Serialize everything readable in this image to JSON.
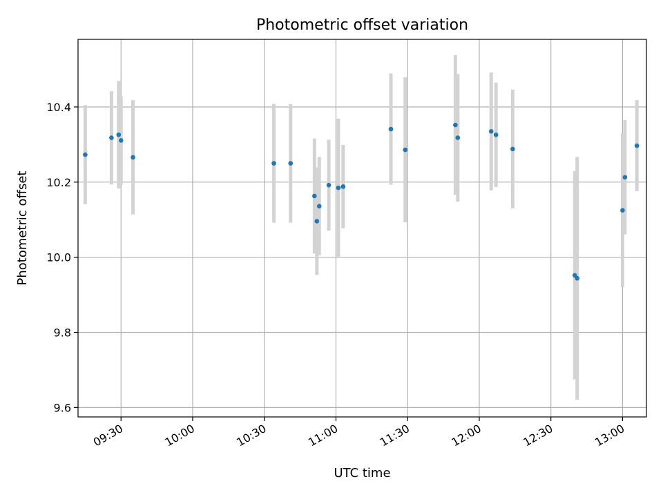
{
  "chart_data": {
    "type": "scatter",
    "title": "Photometric offset variation",
    "xlabel": "UTC time",
    "ylabel": "Photometric offset",
    "xlim": [
      "09:12",
      "13:10"
    ],
    "ylim": [
      9.575,
      10.58
    ],
    "grid": true,
    "x_ticks": [
      "09:30",
      "10:00",
      "10:30",
      "11:00",
      "11:30",
      "12:00",
      "12:30",
      "13:00"
    ],
    "y_ticks": [
      "9.6",
      "9.8",
      "10.0",
      "10.2",
      "10.4"
    ],
    "point_color": "#1f77b4",
    "errorbar_color": "#d3d3d3",
    "series": [
      {
        "points": [
          {
            "x": "09:15",
            "y": 10.273,
            "err": 0.132
          },
          {
            "x": "09:26",
            "y": 10.318,
            "err": 0.124
          },
          {
            "x": "09:29",
            "y": 10.326,
            "err": 0.143
          },
          {
            "x": "09:30",
            "y": 10.311,
            "err": 0.118
          },
          {
            "x": "09:35",
            "y": 10.266,
            "err": 0.152
          },
          {
            "x": "10:34",
            "y": 10.25,
            "err": 0.158
          },
          {
            "x": "10:41",
            "y": 10.25,
            "err": 0.158
          },
          {
            "x": "10:51",
            "y": 10.163,
            "err": 0.153
          },
          {
            "x": "10:52",
            "y": 10.096,
            "err": 0.143
          },
          {
            "x": "10:53",
            "y": 10.136,
            "err": 0.131
          },
          {
            "x": "10:57",
            "y": 10.192,
            "err": 0.121
          },
          {
            "x": "11:01",
            "y": 10.185,
            "err": 0.184
          },
          {
            "x": "11:03",
            "y": 10.188,
            "err": 0.111
          },
          {
            "x": "11:23",
            "y": 10.341,
            "err": 0.148
          },
          {
            "x": "11:29",
            "y": 10.286,
            "err": 0.193
          },
          {
            "x": "11:50",
            "y": 10.352,
            "err": 0.186
          },
          {
            "x": "11:51",
            "y": 10.318,
            "err": 0.17
          },
          {
            "x": "12:05",
            "y": 10.335,
            "err": 0.157
          },
          {
            "x": "12:07",
            "y": 10.326,
            "err": 0.139
          },
          {
            "x": "12:14",
            "y": 10.288,
            "err": 0.158
          },
          {
            "x": "12:40",
            "y": 9.952,
            "err": 0.277
          },
          {
            "x": "12:41",
            "y": 9.944,
            "err": 0.323
          },
          {
            "x": "13:00",
            "y": 10.125,
            "err": 0.205
          },
          {
            "x": "13:01",
            "y": 10.213,
            "err": 0.152
          },
          {
            "x": "13:06",
            "y": 10.297,
            "err": 0.121
          }
        ]
      }
    ]
  }
}
